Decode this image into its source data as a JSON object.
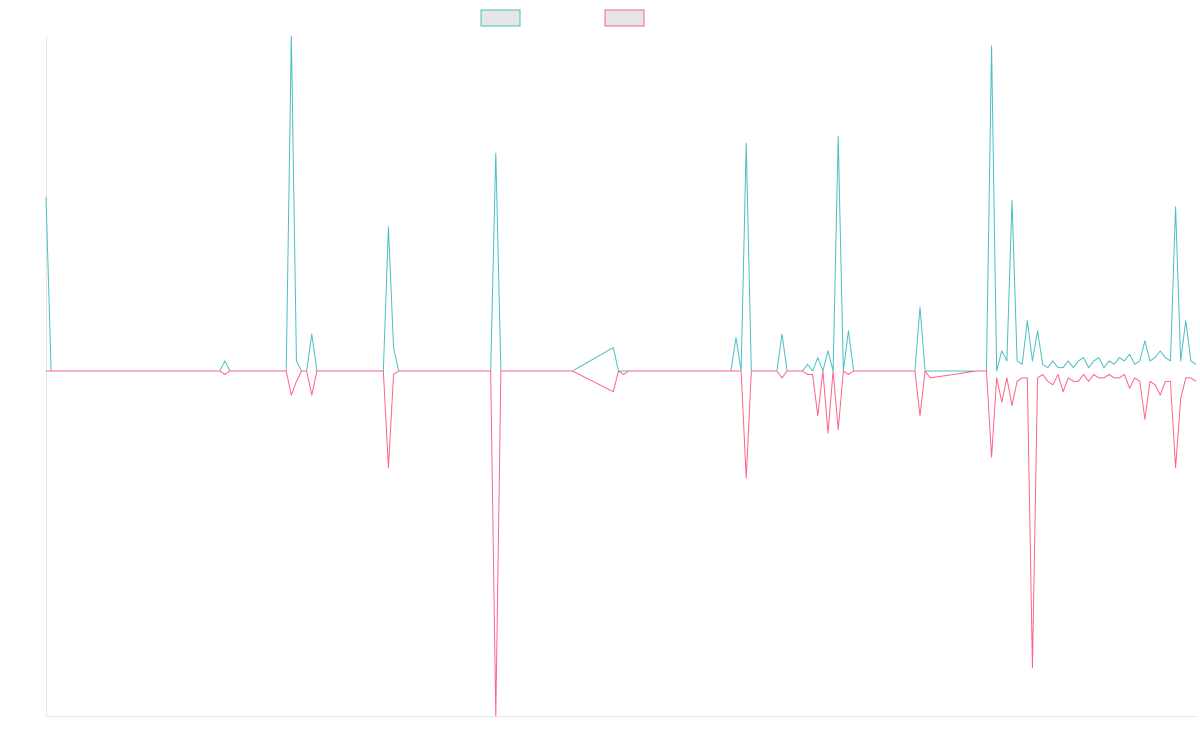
{
  "chart_data": {
    "type": "line",
    "title": "",
    "xlabel": "",
    "ylabel": "",
    "grid": false,
    "legend": "top-center",
    "x_count": 225,
    "ylim": [
      -100,
      100
    ],
    "series": [
      {
        "color": "#4bc0c0",
        "fill": "#e6e6e6",
        "points": [
          [
            0,
            52
          ],
          [
            1,
            0
          ],
          [
            16,
            0
          ],
          [
            34,
            0
          ],
          [
            35,
            3
          ],
          [
            36,
            0
          ],
          [
            47,
            0
          ],
          [
            48,
            100
          ],
          [
            49,
            3
          ],
          [
            50,
            0
          ],
          [
            51,
            0
          ],
          [
            52,
            11
          ],
          [
            53,
            0
          ],
          [
            66,
            0
          ],
          [
            67,
            43
          ],
          [
            68,
            7
          ],
          [
            69,
            0
          ],
          [
            80,
            0
          ],
          [
            87,
            0
          ],
          [
            88,
            65
          ],
          [
            89,
            0
          ],
          [
            101,
            0
          ],
          [
            102,
            0
          ],
          [
            103,
            0
          ],
          [
            111,
            7
          ],
          [
            112,
            0
          ],
          [
            113,
            0
          ],
          [
            114,
            0
          ],
          [
            134,
            0
          ],
          [
            135,
            10
          ],
          [
            136,
            0
          ],
          [
            137,
            68
          ],
          [
            138,
            0
          ],
          [
            139,
            0
          ],
          [
            143,
            0
          ],
          [
            144,
            11
          ],
          [
            145,
            0
          ],
          [
            148,
            0
          ],
          [
            149,
            2
          ],
          [
            150,
            0
          ],
          [
            151,
            4
          ],
          [
            152,
            0
          ],
          [
            153,
            6
          ],
          [
            154,
            0
          ],
          [
            155,
            70
          ],
          [
            156,
            0
          ],
          [
            157,
            12
          ],
          [
            158,
            0
          ],
          [
            165,
            0
          ],
          [
            170,
            0
          ],
          [
            171,
            19
          ],
          [
            172,
            0
          ],
          [
            173,
            0
          ],
          [
            182,
            0
          ],
          [
            183,
            0
          ],
          [
            184,
            0
          ],
          [
            185,
            97
          ],
          [
            186,
            0
          ],
          [
            187,
            6
          ],
          [
            188,
            3
          ],
          [
            189,
            51
          ],
          [
            190,
            3
          ],
          [
            191,
            2
          ],
          [
            192,
            15
          ],
          [
            193,
            3
          ],
          [
            194,
            12
          ],
          [
            195,
            2
          ],
          [
            196,
            1
          ],
          [
            197,
            3
          ],
          [
            198,
            1
          ],
          [
            199,
            1
          ],
          [
            200,
            3
          ],
          [
            201,
            1
          ],
          [
            202,
            3
          ],
          [
            203,
            4
          ],
          [
            204,
            1
          ],
          [
            205,
            3
          ],
          [
            206,
            4
          ],
          [
            207,
            1
          ],
          [
            208,
            3
          ],
          [
            209,
            2
          ],
          [
            210,
            4
          ],
          [
            211,
            3
          ],
          [
            212,
            5
          ],
          [
            213,
            2
          ],
          [
            214,
            3
          ],
          [
            215,
            9
          ],
          [
            216,
            3
          ],
          [
            217,
            4
          ],
          [
            218,
            6
          ],
          [
            219,
            4
          ],
          [
            220,
            3
          ],
          [
            221,
            49
          ],
          [
            222,
            3
          ],
          [
            223,
            15
          ],
          [
            224,
            3
          ],
          [
            225,
            2
          ]
        ]
      },
      {
        "color": "#ff6384",
        "fill": "#e6e6e6",
        "points": [
          [
            0,
            0
          ],
          [
            16,
            0
          ],
          [
            34,
            0
          ],
          [
            35,
            -1
          ],
          [
            36,
            0
          ],
          [
            47,
            0
          ],
          [
            48,
            -7
          ],
          [
            49,
            -3
          ],
          [
            50,
            0
          ],
          [
            51,
            0
          ],
          [
            52,
            -7
          ],
          [
            53,
            0
          ],
          [
            66,
            0
          ],
          [
            67,
            -28
          ],
          [
            68,
            -1
          ],
          [
            69,
            0
          ],
          [
            80,
            0
          ],
          [
            87,
            0
          ],
          [
            88,
            -100
          ],
          [
            89,
            0
          ],
          [
            101,
            0
          ],
          [
            102,
            0
          ],
          [
            103,
            0
          ],
          [
            111,
            -6
          ],
          [
            112,
            0
          ],
          [
            113,
            -1
          ],
          [
            114,
            0
          ],
          [
            134,
            0
          ],
          [
            135,
            0
          ],
          [
            136,
            0
          ],
          [
            137,
            -31
          ],
          [
            138,
            0
          ],
          [
            139,
            0
          ],
          [
            143,
            0
          ],
          [
            144,
            -2
          ],
          [
            145,
            0
          ],
          [
            148,
            0
          ],
          [
            149,
            -1
          ],
          [
            150,
            -1
          ],
          [
            151,
            -13
          ],
          [
            152,
            0
          ],
          [
            153,
            -18
          ],
          [
            154,
            0
          ],
          [
            155,
            -17
          ],
          [
            156,
            0
          ],
          [
            157,
            -1
          ],
          [
            158,
            0
          ],
          [
            165,
            0
          ],
          [
            170,
            0
          ],
          [
            171,
            -13
          ],
          [
            172,
            0
          ],
          [
            173,
            -2
          ],
          [
            182,
            0
          ],
          [
            183,
            0
          ],
          [
            184,
            0
          ],
          [
            185,
            -25
          ],
          [
            186,
            -2
          ],
          [
            187,
            -9
          ],
          [
            188,
            -2
          ],
          [
            189,
            -10
          ],
          [
            190,
            -3
          ],
          [
            191,
            -2
          ],
          [
            192,
            -2
          ],
          [
            193,
            -86
          ],
          [
            194,
            -2
          ],
          [
            195,
            -1
          ],
          [
            196,
            -3
          ],
          [
            197,
            -4
          ],
          [
            198,
            -1
          ],
          [
            199,
            -6
          ],
          [
            200,
            -2
          ],
          [
            201,
            -3
          ],
          [
            202,
            -3
          ],
          [
            203,
            -1
          ],
          [
            204,
            -3
          ],
          [
            205,
            -1
          ],
          [
            206,
            -2
          ],
          [
            207,
            -2
          ],
          [
            208,
            -1
          ],
          [
            209,
            -2
          ],
          [
            210,
            -2
          ],
          [
            211,
            -1
          ],
          [
            212,
            -5
          ],
          [
            213,
            -2
          ],
          [
            214,
            -3
          ],
          [
            215,
            -14
          ],
          [
            216,
            -3
          ],
          [
            217,
            -4
          ],
          [
            218,
            -7
          ],
          [
            219,
            -3
          ],
          [
            220,
            -3
          ],
          [
            221,
            -28
          ],
          [
            222,
            -8
          ],
          [
            223,
            -2
          ],
          [
            224,
            -2
          ],
          [
            225,
            -3
          ]
        ]
      }
    ]
  }
}
